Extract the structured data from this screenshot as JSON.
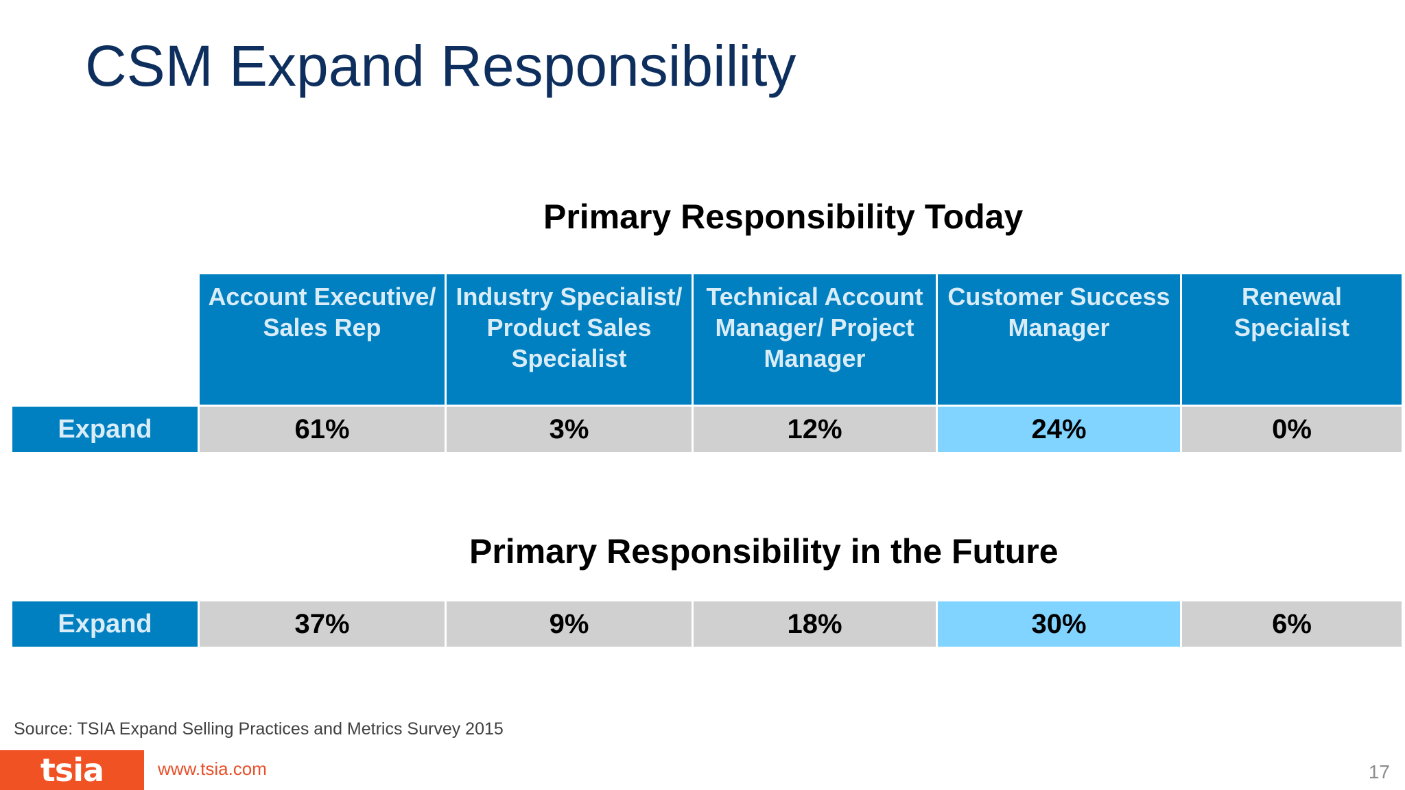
{
  "slide": {
    "title": "CSM Expand Responsibility",
    "section_today": "Primary Responsibility Today",
    "section_future": "Primary Responsibility in the Future",
    "columns": [
      "Account Executive/ Sales Rep",
      "Industry Specialist/ Product Sales Specialist",
      "Technical Account Manager/ Project Manager",
      "Customer Success Manager",
      "Renewal Specialist"
    ],
    "today_row": {
      "label": "Expand",
      "values": [
        "61%",
        "3%",
        "12%",
        "24%",
        "0%"
      ]
    },
    "future_row": {
      "label": "Expand",
      "values": [
        "37%",
        "9%",
        "18%",
        "30%",
        "6%"
      ]
    },
    "highlight_column_index": 3,
    "colors": {
      "title": "#0e2f5e",
      "header_bg": "#0080c0",
      "value_bg": "#d0d0d0",
      "highlight_bg": "#80d4ff",
      "brand": "#f05223"
    }
  },
  "footer": {
    "source": "Source: TSIA Expand Selling Practices and Metrics Survey 2015",
    "logo_text": "tsia",
    "url": "www.tsia.com",
    "page_number": "17"
  }
}
